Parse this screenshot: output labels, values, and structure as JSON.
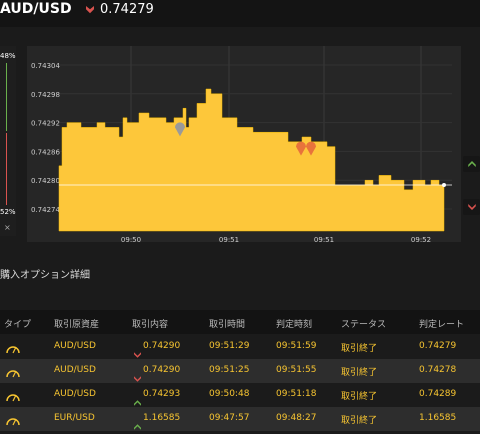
{
  "header": {
    "pair": "AUD/USD",
    "rate": "0.74279"
  },
  "sidebar": {
    "top_pct": "48%",
    "bottom_pct": "52%",
    "close": "×"
  },
  "chart_data": {
    "type": "area",
    "yticks": [
      "0.74304",
      "0.74298",
      "0.74292",
      "0.74286",
      "0.74280",
      "0.74274"
    ],
    "xticks": [
      "09:50",
      "09:51",
      "09:51",
      "09:52"
    ],
    "current_rate": 0.74279,
    "series": [
      {
        "values": [
          [
            0,
            0.74283
          ],
          [
            2,
            0.74283
          ],
          [
            3,
            0.74291
          ],
          [
            7,
            0.74291
          ],
          [
            8,
            0.74292
          ],
          [
            20,
            0.74292
          ],
          [
            22,
            0.74291
          ],
          [
            37,
            0.74291
          ],
          [
            38,
            0.74292
          ],
          [
            45,
            0.74292
          ],
          [
            46,
            0.74291
          ],
          [
            58,
            0.74291
          ],
          [
            60,
            0.74289
          ],
          [
            64,
            0.74293
          ],
          [
            68,
            0.74292
          ],
          [
            78,
            0.74292
          ],
          [
            80,
            0.74294
          ],
          [
            88,
            0.74294
          ],
          [
            90,
            0.74293
          ],
          [
            105,
            0.74293
          ],
          [
            107,
            0.74292
          ],
          [
            113,
            0.74292
          ],
          [
            115,
            0.74293
          ],
          [
            122,
            0.74293
          ],
          [
            124,
            0.74295
          ],
          [
            126,
            0.74295
          ],
          [
            127,
            0.74291
          ],
          [
            130,
            0.74293
          ],
          [
            136,
            0.74293
          ],
          [
            138,
            0.74296
          ],
          [
            145,
            0.74296
          ],
          [
            147,
            0.74299
          ],
          [
            152,
            0.74298
          ],
          [
            161,
            0.74298
          ],
          [
            163,
            0.74293
          ],
          [
            176,
            0.74293
          ],
          [
            178,
            0.74291
          ],
          [
            192,
            0.74291
          ],
          [
            194,
            0.7429
          ],
          [
            227,
            0.7429
          ],
          [
            229,
            0.74288
          ],
          [
            241,
            0.74288
          ],
          [
            243,
            0.74289
          ],
          [
            250,
            0.74289
          ],
          [
            252,
            0.74288
          ],
          [
            266,
            0.74288
          ],
          [
            268,
            0.74287
          ],
          [
            275,
            0.74287
          ],
          [
            276,
            0.74279
          ],
          [
            304,
            0.74279
          ],
          [
            306,
            0.7428
          ],
          [
            312,
            0.7428
          ],
          [
            314,
            0.74279
          ],
          [
            318,
            0.74279
          ],
          [
            320,
            0.74281
          ],
          [
            330,
            0.74281
          ],
          [
            332,
            0.7428
          ],
          [
            343,
            0.7428
          ],
          [
            345,
            0.74278
          ],
          [
            352,
            0.74278
          ],
          [
            354,
            0.7428
          ],
          [
            364,
            0.7428
          ],
          [
            366,
            0.74279
          ],
          [
            370,
            0.74279
          ],
          [
            372,
            0.7428
          ],
          [
            378,
            0.7428
          ],
          [
            380,
            0.74279
          ],
          [
            385,
            0.74279
          ]
        ]
      }
    ],
    "markers": [
      {
        "type": "neutral",
        "t": 121,
        "value": 0.74291
      },
      {
        "type": "down",
        "t": 242,
        "value": 0.74287
      },
      {
        "type": "down",
        "t": 252,
        "value": 0.74287
      }
    ]
  },
  "side_buttons": [
    {
      "dir": "up",
      "color": "#6ab04c"
    },
    {
      "dir": "down",
      "color": "#d9534f"
    }
  ],
  "section_title": "購入オプション詳細",
  "table": {
    "headers": [
      "タイプ",
      "取引原資産",
      "取引内容",
      "取引時間",
      "判定時刻",
      "ステータス",
      "判定レート"
    ],
    "rows": [
      {
        "asset": "AUD/USD",
        "dir": "down",
        "value": "0.74290",
        "time": "09:51:29",
        "judge": "09:51:59",
        "status": "取引終了",
        "rate": "0.74279"
      },
      {
        "asset": "AUD/USD",
        "dir": "down",
        "value": "0.74290",
        "time": "09:51:25",
        "judge": "09:51:55",
        "status": "取引終了",
        "rate": "0.74278"
      },
      {
        "asset": "AUD/USD",
        "dir": "up",
        "value": "0.74293",
        "time": "09:50:48",
        "judge": "09:51:18",
        "status": "取引終了",
        "rate": "0.74289"
      },
      {
        "asset": "EUR/USD",
        "dir": "up",
        "value": "1.16585",
        "time": "09:47:57",
        "judge": "09:48:27",
        "status": "取引終了",
        "rate": "1.16585"
      }
    ]
  }
}
